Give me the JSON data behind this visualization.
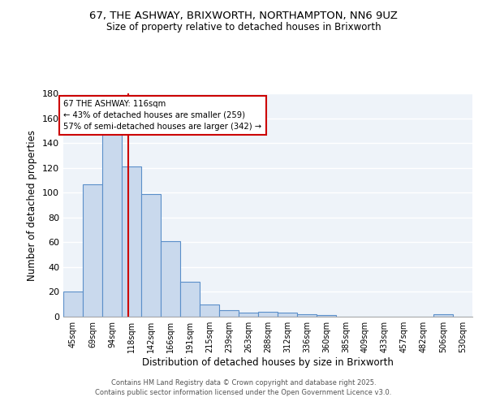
{
  "title_line1": "67, THE ASHWAY, BRIXWORTH, NORTHAMPTON, NN6 9UZ",
  "title_line2": "Size of property relative to detached houses in Brixworth",
  "xlabel": "Distribution of detached houses by size in Brixworth",
  "ylabel": "Number of detached properties",
  "bar_color": "#c9d9ed",
  "bar_edge_color": "#5b8fc9",
  "background_color": "#eef3f9",
  "grid_color": "#ffffff",
  "categories": [
    "45sqm",
    "69sqm",
    "94sqm",
    "118sqm",
    "142sqm",
    "166sqm",
    "191sqm",
    "215sqm",
    "239sqm",
    "263sqm",
    "288sqm",
    "312sqm",
    "336sqm",
    "360sqm",
    "385sqm",
    "409sqm",
    "433sqm",
    "457sqm",
    "482sqm",
    "506sqm",
    "530sqm"
  ],
  "values": [
    20,
    107,
    150,
    121,
    99,
    61,
    28,
    10,
    5,
    3,
    4,
    3,
    2,
    1,
    0,
    0,
    0,
    0,
    0,
    2,
    0
  ],
  "ylim": [
    0,
    180
  ],
  "yticks": [
    0,
    20,
    40,
    60,
    80,
    100,
    120,
    140,
    160,
    180
  ],
  "vline_x": 2.85,
  "vline_color": "#cc0000",
  "annotation_text": "67 THE ASHWAY: 116sqm\n← 43% of detached houses are smaller (259)\n57% of semi-detached houses are larger (342) →",
  "footer_line1": "Contains HM Land Registry data © Crown copyright and database right 2025.",
  "footer_line2": "Contains public sector information licensed under the Open Government Licence v3.0."
}
